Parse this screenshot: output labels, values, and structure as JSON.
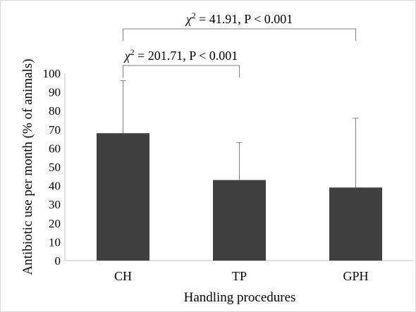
{
  "chart_data": {
    "type": "bar",
    "categories": [
      "CH",
      "TP",
      "GPH"
    ],
    "values": [
      68,
      43,
      39
    ],
    "error_upper": [
      96,
      63,
      76
    ],
    "xlabel": "Handling procedures",
    "ylabel": "Antibiotic use per month (% of animals)",
    "ylim": [
      0,
      100
    ],
    "yticks": [
      0,
      10,
      20,
      30,
      40,
      50,
      60,
      70,
      80,
      90,
      100
    ],
    "grid": false,
    "bar_color": "#404040",
    "annotations": [
      {
        "label_symbol": "χ",
        "label_exp": "2",
        "label_text": " = 201.71, P < 0.001",
        "from": 0,
        "to": 1
      },
      {
        "label_symbol": "χ",
        "label_exp": "2",
        "label_text": " = 41.91, P < 0.001",
        "from": 0,
        "to": 2
      }
    ]
  }
}
